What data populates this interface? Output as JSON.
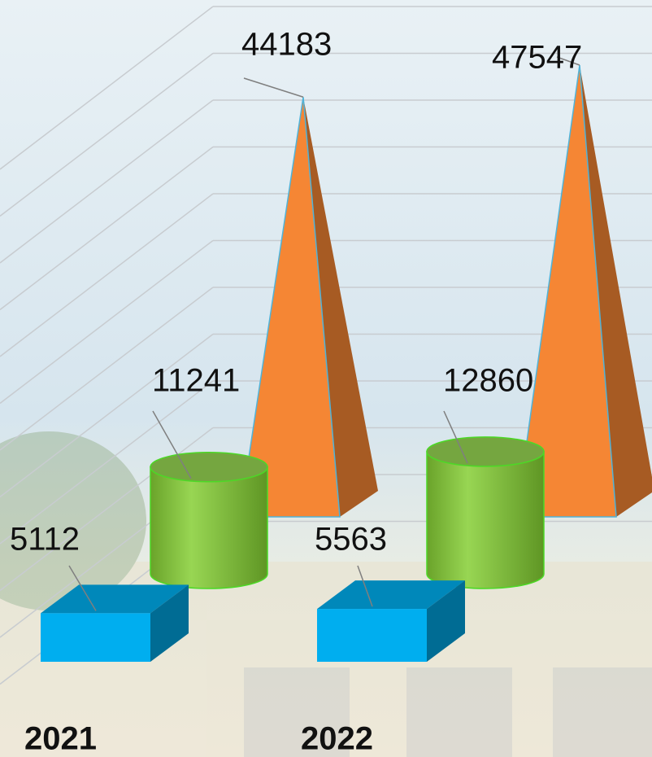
{
  "chart_data": {
    "type": "bar3d",
    "categories": [
      "2021",
      "2022"
    ],
    "series": [
      {
        "shape": "box",
        "color": "#00aeef",
        "values": [
          5112,
          5563
        ]
      },
      {
        "shape": "cylinder",
        "color": "#92d050",
        "values": [
          11241,
          12860
        ]
      },
      {
        "shape": "pyramid",
        "color": "#f58634",
        "values": [
          44183,
          47547
        ]
      }
    ],
    "grid": true
  }
}
